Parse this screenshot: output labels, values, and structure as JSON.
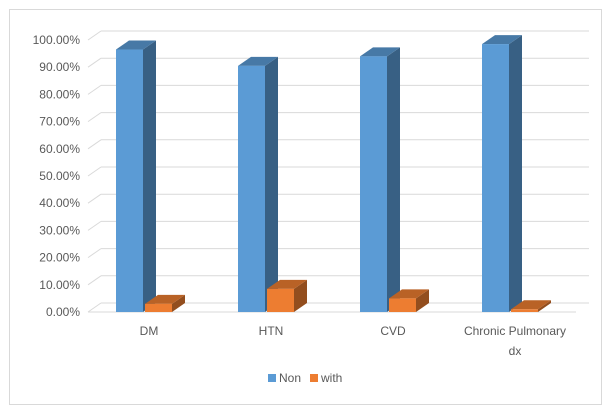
{
  "chart_data": {
    "type": "bar",
    "title": "",
    "xlabel": "",
    "ylabel": "",
    "categories": [
      "DM",
      "HTN",
      "CVD",
      "Chronic Pulmonary dx"
    ],
    "category_lines": [
      [
        "DM"
      ],
      [
        "HTN"
      ],
      [
        "CVD"
      ],
      [
        "Chronic Pulmonary",
        "dx"
      ]
    ],
    "series": [
      {
        "name": "Non",
        "color": "#5b9bd5",
        "values": [
          96.5,
          90.5,
          94.0,
          98.5
        ]
      },
      {
        "name": "with",
        "color": "#ed7d31",
        "values": [
          3.0,
          8.5,
          5.0,
          1.0
        ]
      }
    ],
    "ylim": [
      0,
      100
    ],
    "yticks": [
      "0.00%",
      "10.00%",
      "20.00%",
      "30.00%",
      "40.00%",
      "50.00%",
      "60.00%",
      "70.00%",
      "80.00%",
      "90.00%",
      "100.00%"
    ],
    "grid": true,
    "legend_position": "bottom",
    "style": "3d-column"
  }
}
